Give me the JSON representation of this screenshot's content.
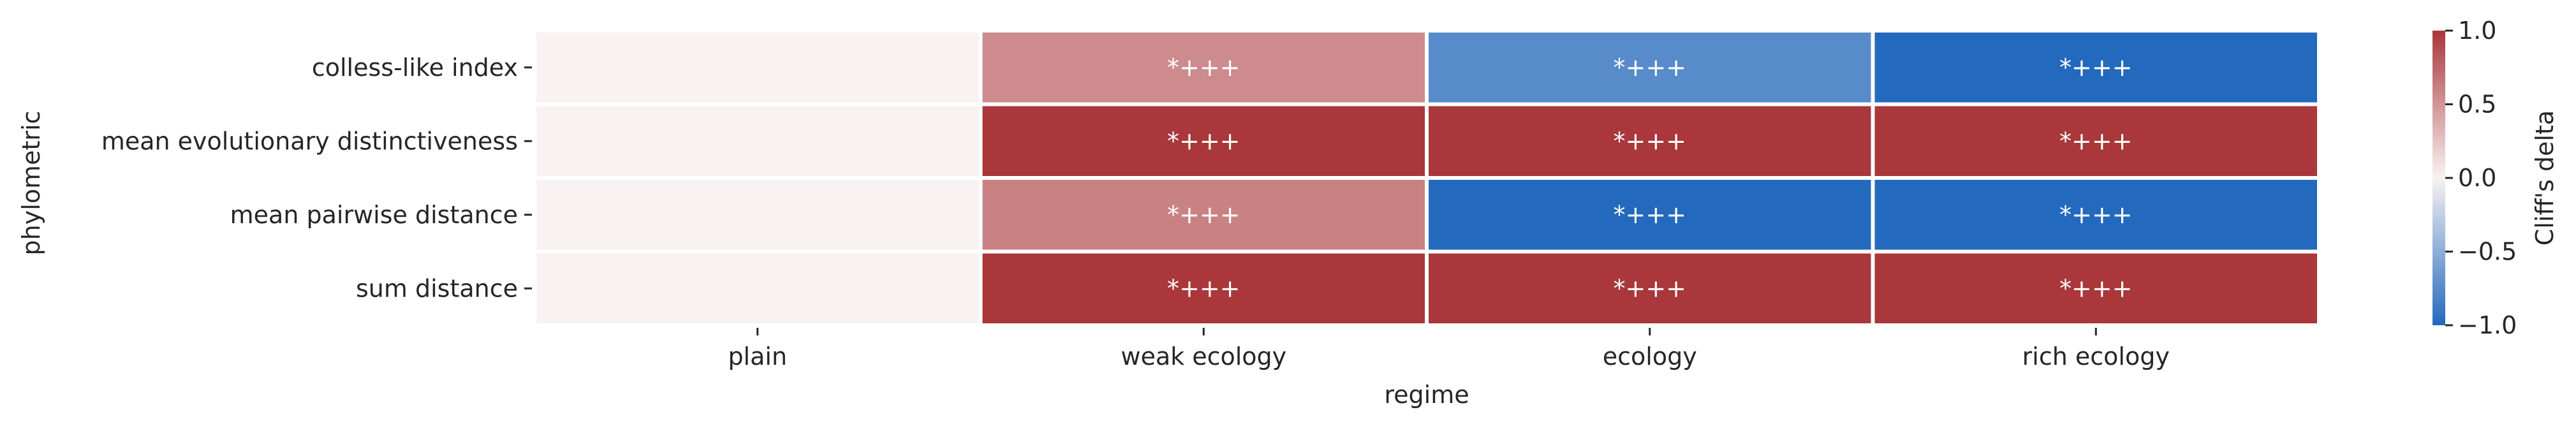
{
  "chart_data": {
    "type": "heatmap",
    "title": "",
    "xlabel": "regime",
    "ylabel": "phylometric",
    "x_categories": [
      "plain",
      "weak ecology",
      "ecology",
      "rich ecology"
    ],
    "y_categories": [
      "colless-like index",
      "mean evolutionary distinctiveness",
      "mean pairwise distance",
      "sum distance"
    ],
    "values": [
      [
        0.0,
        0.55,
        -0.75,
        -1.0
      ],
      [
        0.0,
        1.0,
        1.0,
        1.0
      ],
      [
        0.0,
        0.6,
        -1.0,
        -1.0
      ],
      [
        0.0,
        1.0,
        1.0,
        1.0
      ]
    ],
    "annotations": [
      [
        "",
        "*+++",
        "*+++",
        "*+++"
      ],
      [
        "",
        "*+++",
        "*+++",
        "*+++"
      ],
      [
        "",
        "*+++",
        "*+++",
        "*+++"
      ],
      [
        "",
        "*+++",
        "*+++",
        "*+++"
      ]
    ],
    "colorbar": {
      "label": "Cliff's delta",
      "range": [
        -1.0,
        1.0
      ],
      "ticks": [
        -1.0,
        -0.5,
        0.0,
        0.5,
        1.0
      ],
      "tick_labels": [
        "−1.0",
        "−0.5",
        "0.0",
        "0.5",
        "1.0"
      ],
      "colormap": "vlag",
      "colors": {
        "low": "#2369bd",
        "mid": "#f8f2f2",
        "high": "#a9373b"
      }
    },
    "grid": false,
    "legend": "colorbar-right"
  }
}
